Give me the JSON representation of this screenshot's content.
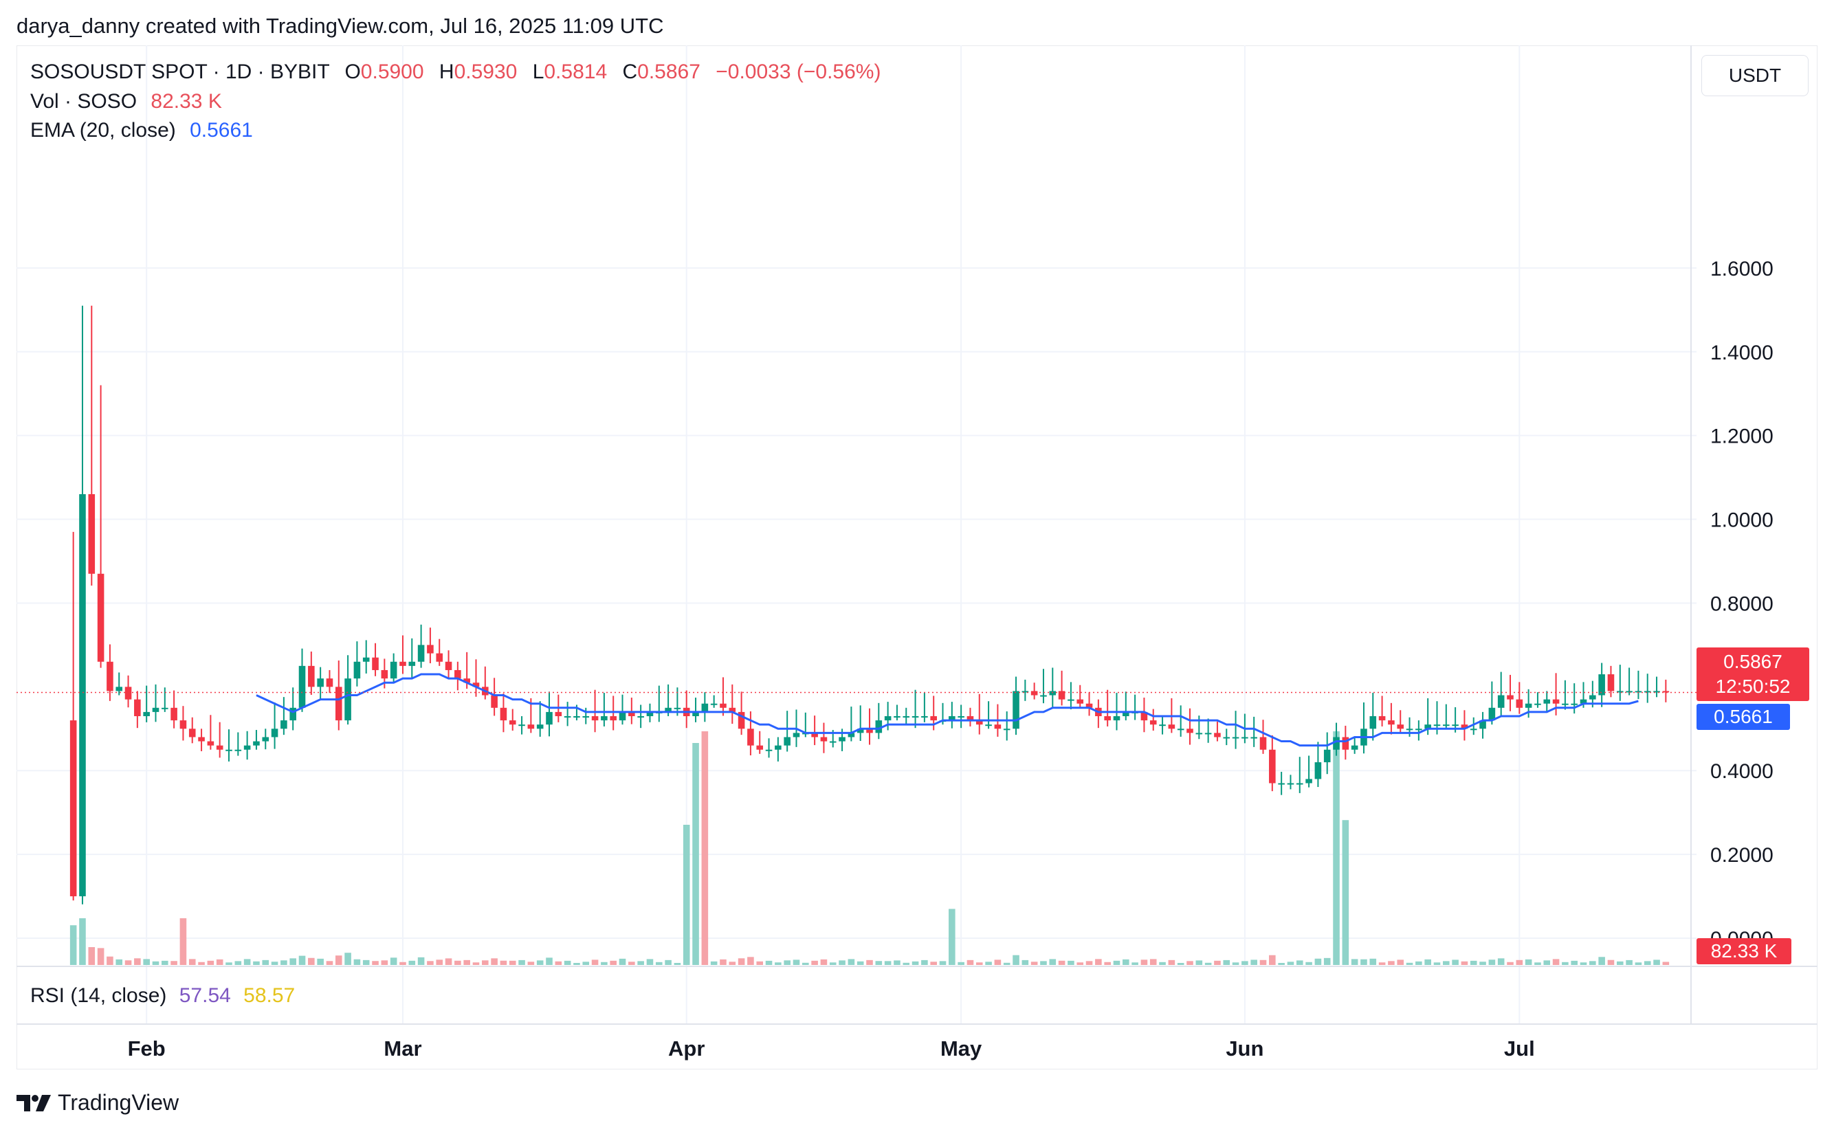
{
  "header": {
    "credit": "darya_danny created with TradingView.com, Jul 16, 2025 11:09 UTC"
  },
  "legend": {
    "symbol": "SOSOUSDT SPOT · 1D · BYBIT",
    "o_label": "O",
    "o_value": "0.5900",
    "h_label": "H",
    "h_value": "0.5930",
    "l_label": "L",
    "l_value": "0.5814",
    "c_label": "C",
    "c_value": "0.5867",
    "change": "−0.0033 (−0.56%)",
    "vol_label": "Vol · SOSO",
    "vol_value": "82.33 K",
    "ema_label": "EMA (20, close)",
    "ema_value": "0.5661"
  },
  "price_scale": {
    "currency": "USDT",
    "last_price": "0.5867",
    "countdown": "12:50:52",
    "ema_tag": "0.5661",
    "volume_tag": "82.33 K"
  },
  "rsi": {
    "label": "RSI (14, close)",
    "value1": "57.54",
    "value2": "58.57"
  },
  "footer": {
    "brand": "TradingView"
  },
  "colors": {
    "up": "#089981",
    "down": "#f23645",
    "ema": "#2962ff",
    "vol_up": "#8fd3c9",
    "vol_down": "#f5a3a8",
    "rsi1": "#7e57c2",
    "rsi2": "#e5c31c"
  },
  "chart_data": {
    "type": "candlestick",
    "y_ticks": [
      "1.6000",
      "1.4000",
      "1.2000",
      "1.0000",
      "0.8000",
      "0.4000",
      "0.2000",
      "0.0000"
    ],
    "y_tick_values": [
      1.6,
      1.4,
      1.2,
      1.0,
      0.8,
      0.4,
      0.2,
      0.0
    ],
    "ylim": [
      0.0,
      1.8
    ],
    "x_ticks": [
      {
        "label": "Feb",
        "index": 8
      },
      {
        "label": "Mar",
        "index": 36
      },
      {
        "label": "Apr",
        "index": 67
      },
      {
        "label": "May",
        "index": 97
      },
      {
        "label": "Jun",
        "index": 128
      },
      {
        "label": "Jul",
        "index": 158
      }
    ],
    "total_slots": 175,
    "candles_close": [
      0.1,
      1.06,
      0.87,
      0.66,
      0.59,
      0.6,
      0.57,
      0.53,
      0.54,
      0.55,
      0.55,
      0.52,
      0.5,
      0.48,
      0.47,
      0.46,
      0.45,
      0.45,
      0.45,
      0.46,
      0.47,
      0.48,
      0.5,
      0.52,
      0.55,
      0.65,
      0.6,
      0.62,
      0.6,
      0.52,
      0.62,
      0.66,
      0.67,
      0.64,
      0.62,
      0.66,
      0.65,
      0.66,
      0.7,
      0.68,
      0.66,
      0.64,
      0.62,
      0.61,
      0.6,
      0.58,
      0.55,
      0.52,
      0.51,
      0.51,
      0.5,
      0.51,
      0.54,
      0.53,
      0.53,
      0.53,
      0.53,
      0.52,
      0.53,
      0.52,
      0.54,
      0.53,
      0.53,
      0.54,
      0.54,
      0.55,
      0.55,
      0.53,
      0.54,
      0.56,
      0.56,
      0.55,
      0.54,
      0.5,
      0.46,
      0.45,
      0.45,
      0.46,
      0.48,
      0.49,
      0.49,
      0.48,
      0.47,
      0.47,
      0.48,
      0.49,
      0.5,
      0.49,
      0.52,
      0.53,
      0.53,
      0.53,
      0.53,
      0.53,
      0.52,
      0.52,
      0.53,
      0.53,
      0.52,
      0.51,
      0.51,
      0.5,
      0.5,
      0.59,
      0.59,
      0.58,
      0.58,
      0.59,
      0.57,
      0.57,
      0.56,
      0.55,
      0.53,
      0.52,
      0.53,
      0.54,
      0.54,
      0.52,
      0.51,
      0.51,
      0.5,
      0.5,
      0.49,
      0.49,
      0.49,
      0.48,
      0.48,
      0.48,
      0.48,
      0.48,
      0.45,
      0.37,
      0.37,
      0.37,
      0.37,
      0.38,
      0.42,
      0.45,
      0.48,
      0.45,
      0.46,
      0.5,
      0.53,
      0.52,
      0.51,
      0.5,
      0.5,
      0.5,
      0.51,
      0.51,
      0.51,
      0.51,
      0.5,
      0.5,
      0.52,
      0.55,
      0.58,
      0.57,
      0.55,
      0.56,
      0.56,
      0.57,
      0.56,
      0.56,
      0.56,
      0.57,
      0.58,
      0.63,
      0.59,
      0.59,
      0.59,
      0.59,
      0.59,
      0.59,
      0.5867
    ],
    "series": [
      {
        "name": "EMA (20, close)",
        "values_start_index": 20,
        "values": [
          0.58,
          0.57,
          0.56,
          0.55,
          0.54,
          0.55,
          0.56,
          0.57,
          0.57,
          0.57,
          0.58,
          0.58,
          0.59,
          0.6,
          0.61,
          0.61,
          0.62,
          0.62,
          0.63,
          0.63,
          0.63,
          0.62,
          0.62,
          0.61,
          0.6,
          0.59,
          0.58,
          0.58,
          0.57,
          0.57,
          0.56,
          0.56,
          0.55,
          0.55,
          0.55,
          0.55,
          0.54,
          0.54,
          0.54,
          0.54,
          0.54,
          0.54,
          0.54,
          0.54,
          0.54,
          0.54,
          0.54,
          0.54,
          0.54,
          0.54,
          0.54,
          0.54,
          0.54,
          0.53,
          0.52,
          0.51,
          0.51,
          0.5,
          0.5,
          0.5,
          0.49,
          0.49,
          0.49,
          0.49,
          0.49,
          0.49,
          0.5,
          0.5,
          0.5,
          0.51,
          0.51,
          0.51,
          0.51,
          0.51,
          0.51,
          0.52,
          0.52,
          0.52,
          0.52,
          0.52,
          0.52,
          0.52,
          0.52,
          0.52,
          0.53,
          0.54,
          0.54,
          0.55,
          0.55,
          0.55,
          0.55,
          0.55,
          0.54,
          0.54,
          0.54,
          0.54,
          0.54,
          0.54,
          0.53,
          0.53,
          0.53,
          0.53,
          0.52,
          0.52,
          0.52,
          0.52,
          0.51,
          0.51,
          0.5,
          0.5,
          0.49,
          0.48,
          0.47,
          0.47,
          0.46,
          0.46,
          0.46,
          0.46,
          0.47,
          0.47,
          0.48,
          0.48,
          0.48,
          0.49,
          0.49,
          0.49,
          0.49,
          0.49,
          0.5,
          0.5,
          0.5,
          0.5,
          0.5,
          0.51,
          0.52,
          0.52,
          0.53,
          0.53,
          0.53,
          0.54,
          0.54,
          0.54,
          0.55,
          0.55,
          0.55,
          0.56,
          0.56,
          0.56,
          0.56,
          0.56,
          0.56,
          0.5661
        ]
      }
    ],
    "volume_spikes": [
      {
        "index": 0,
        "level": 0.17,
        "dir": "up"
      },
      {
        "index": 1,
        "level": 0.2,
        "dir": "up"
      },
      {
        "index": 12,
        "level": 0.2,
        "dir": "down"
      },
      {
        "index": 67,
        "level": 0.6,
        "dir": "up"
      },
      {
        "index": 68,
        "level": 0.95,
        "dir": "up"
      },
      {
        "index": 69,
        "level": 1.0,
        "dir": "down"
      },
      {
        "index": 96,
        "level": 0.24,
        "dir": "up"
      },
      {
        "index": 138,
        "level": 1.0,
        "dir": "up"
      },
      {
        "index": 139,
        "level": 0.62,
        "dir": "up"
      }
    ]
  }
}
